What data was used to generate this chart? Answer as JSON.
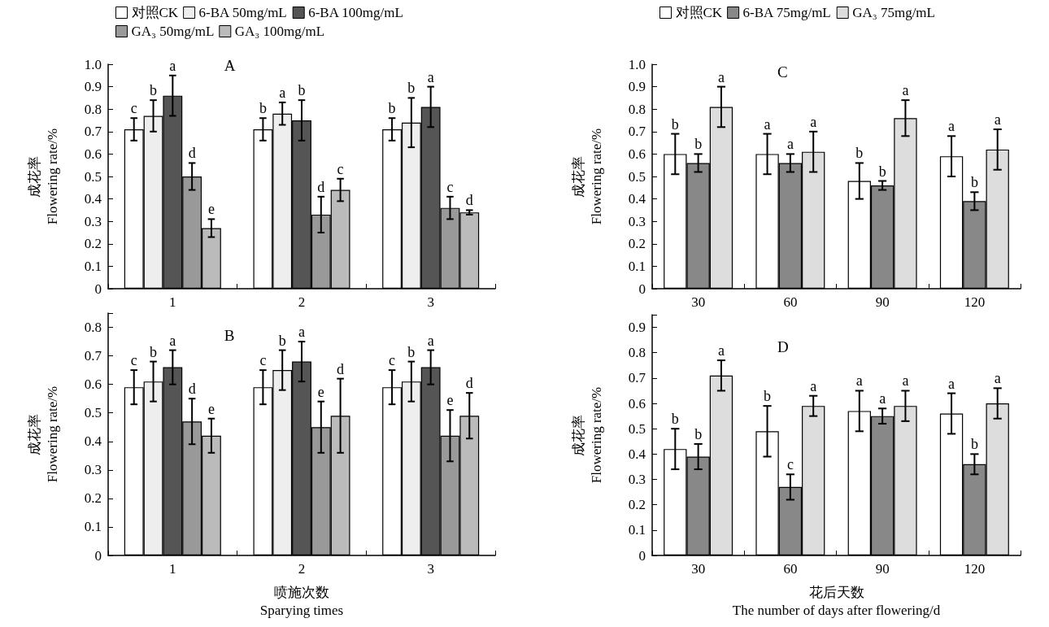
{
  "chart_data": [
    {
      "type": "bar",
      "ylabel": "成花率\nFlowering rate/%",
      "annotations": [
        "A"
      ],
      "categories": [
        "1",
        "2",
        "3"
      ],
      "ylim": [
        0,
        1.0
      ],
      "yticks": [
        0,
        0.1,
        0.2,
        0.3,
        0.4,
        0.5,
        0.6,
        0.7,
        0.8,
        0.9,
        {
          "value": 1.0,
          "label": "1.0"
        }
      ],
      "legend": "top",
      "grid": false,
      "series": [
        {
          "name": "对照CK",
          "color": "#ffffff",
          "values": [
            0.71,
            0.71,
            0.71
          ],
          "errors": [
            0.05,
            0.05,
            0.05
          ],
          "value_labels": [
            "c",
            "b",
            "b"
          ]
        },
        {
          "name": "6-BA 50mg/mL",
          "color": "#eeeeee",
          "values": [
            0.77,
            0.78,
            0.74
          ],
          "errors": [
            0.07,
            0.05,
            0.11
          ],
          "value_labels": [
            "b",
            "a",
            "b"
          ]
        },
        {
          "name": "6-BA 100mg/mL",
          "color": "#555555",
          "values": [
            0.86,
            0.75,
            0.81
          ],
          "errors": [
            0.09,
            0.09,
            0.09
          ],
          "value_labels": [
            "a",
            "b",
            "a"
          ]
        },
        {
          "name": "GA₃ 50mg/mL",
          "color": "#999999",
          "values": [
            0.5,
            0.33,
            0.36
          ],
          "errors": [
            0.06,
            0.08,
            0.05
          ],
          "value_labels": [
            "d",
            "d",
            "c"
          ]
        },
        {
          "name": "GA₃ 100mg/mL",
          "color": "#bbbbbb",
          "values": [
            0.27,
            0.44,
            0.34
          ],
          "errors": [
            0.04,
            0.05,
            0.01
          ],
          "value_labels": [
            "e",
            "c",
            "d"
          ]
        }
      ]
    },
    {
      "type": "bar",
      "xlabel": "喷施次数\nSparying times",
      "ylabel": "成花率\nFlowering rate/%",
      "annotations": [
        "B"
      ],
      "categories": [
        "1",
        "2",
        "3"
      ],
      "ylim": [
        0,
        0.85
      ],
      "yticks": [
        0,
        0.1,
        0.2,
        0.3,
        0.4,
        0.5,
        0.6,
        0.7,
        0.8
      ],
      "grid": false,
      "series": [
        {
          "color": "#ffffff",
          "values": [
            0.59,
            0.59,
            0.59
          ],
          "errors": [
            0.06,
            0.06,
            0.06
          ],
          "value_labels": [
            "c",
            "c",
            "c"
          ]
        },
        {
          "color": "#eeeeee",
          "values": [
            0.61,
            0.65,
            0.61
          ],
          "errors": [
            0.07,
            0.07,
            0.07
          ],
          "value_labels": [
            "b",
            "b",
            "b"
          ]
        },
        {
          "color": "#555555",
          "values": [
            0.66,
            0.68,
            0.66
          ],
          "errors": [
            0.06,
            0.07,
            0.06
          ],
          "value_labels": [
            "a",
            "a",
            "a"
          ]
        },
        {
          "color": "#999999",
          "values": [
            0.47,
            0.45,
            0.42
          ],
          "errors": [
            0.08,
            0.09,
            0.09
          ],
          "value_labels": [
            "d",
            "e",
            "e"
          ]
        },
        {
          "color": "#bbbbbb",
          "values": [
            0.42,
            0.49,
            0.49
          ],
          "errors": [
            0.06,
            0.13,
            0.08
          ],
          "value_labels": [
            "e",
            "d",
            "d"
          ]
        }
      ]
    },
    {
      "type": "bar",
      "ylabel": "成花率\nFlowering rate/%",
      "annotations": [
        "C"
      ],
      "categories": [
        "30",
        "60",
        "90",
        "120"
      ],
      "ylim": [
        0,
        1.0
      ],
      "yticks": [
        0,
        0.1,
        0.2,
        0.3,
        0.4,
        0.5,
        0.6,
        0.7,
        0.8,
        0.9,
        {
          "value": 1.0,
          "label": "1.0"
        }
      ],
      "legend": "top",
      "grid": false,
      "series": [
        {
          "name": "对照CK",
          "color": "#ffffff",
          "values": [
            0.6,
            0.6,
            0.48,
            0.59
          ],
          "errors": [
            0.09,
            0.09,
            0.08,
            0.09
          ],
          "value_labels": [
            "b",
            "a",
            "b",
            "a"
          ]
        },
        {
          "name": "6-BA 75mg/mL",
          "color": "#888888",
          "values": [
            0.56,
            0.56,
            0.46,
            0.39
          ],
          "errors": [
            0.04,
            0.04,
            0.02,
            0.04
          ],
          "value_labels": [
            "b",
            "a",
            "b",
            "b"
          ]
        },
        {
          "name": "GA₃ 75mg/mL",
          "color": "#dddddd",
          "values": [
            0.81,
            0.61,
            0.76,
            0.62
          ],
          "errors": [
            0.09,
            0.09,
            0.08,
            0.09
          ],
          "value_labels": [
            "a",
            "a",
            "a",
            "a"
          ]
        }
      ]
    },
    {
      "type": "bar",
      "xlabel": "花后天数\nThe number of days after flowering/d",
      "ylabel": "成花率\nFlowering rate/%",
      "annotations": [
        "D"
      ],
      "categories": [
        "30",
        "60",
        "90",
        "120"
      ],
      "ylim": [
        0,
        0.95
      ],
      "yticks": [
        0,
        0.1,
        0.2,
        0.3,
        0.4,
        0.5,
        0.6,
        0.7,
        0.8,
        0.9
      ],
      "grid": false,
      "series": [
        {
          "color": "#ffffff",
          "values": [
            0.42,
            0.49,
            0.57,
            0.56
          ],
          "errors": [
            0.08,
            0.1,
            0.08,
            0.08
          ],
          "value_labels": [
            "b",
            "b",
            "a",
            "a"
          ]
        },
        {
          "color": "#888888",
          "values": [
            0.39,
            0.27,
            0.55,
            0.36
          ],
          "errors": [
            0.05,
            0.05,
            0.03,
            0.04
          ],
          "value_labels": [
            "b",
            "c",
            "a",
            "b"
          ]
        },
        {
          "color": "#dddddd",
          "values": [
            0.71,
            0.59,
            0.59,
            0.6
          ],
          "errors": [
            0.06,
            0.04,
            0.06,
            0.06
          ],
          "value_labels": [
            "a",
            "a",
            "a",
            "a"
          ]
        }
      ]
    }
  ]
}
